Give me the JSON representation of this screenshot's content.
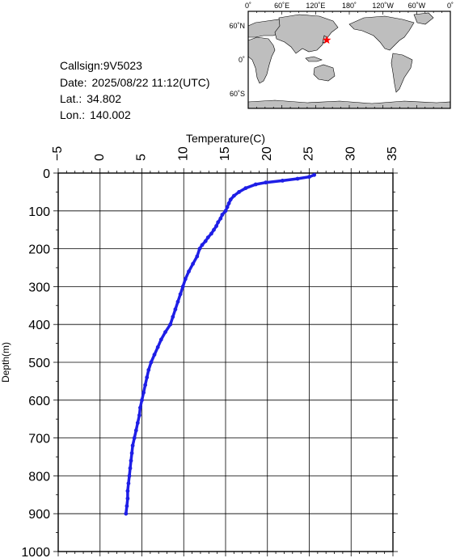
{
  "station": {
    "callsign_label": "Callsign:",
    "callsign": "9V5023",
    "date_label": "Date:",
    "date": "2025/08/22 11:12(UTC)",
    "lat_label": "Lat.:",
    "lat": "34.802",
    "lon_label": "Lon.:",
    "lon": "140.002"
  },
  "map": {
    "lon_ticks": [
      "0˚",
      "60˚E",
      "120˚E",
      "180˚",
      "120˚W",
      "60˚W",
      "0˚"
    ],
    "lat_ticks": [
      "60˚N",
      "0˚",
      "60˚S"
    ],
    "marker_lat": 34.802,
    "marker_lon": 140.002,
    "marker_color": "#ff0000",
    "land_color": "#bebebe",
    "ocean_color": "#ffffff"
  },
  "chart_data": {
    "type": "line",
    "xlabel": "Temperature(C)",
    "ylabel": "Depth(m)",
    "xlim": [
      -5,
      35
    ],
    "ylim": [
      0,
      1000
    ],
    "x_ticks": [
      -5,
      0,
      5,
      10,
      15,
      20,
      25,
      30,
      35
    ],
    "y_ticks": [
      0,
      100,
      200,
      300,
      400,
      500,
      600,
      700,
      800,
      900,
      1000
    ],
    "grid": true,
    "series_color": "#1e1ee6",
    "series": [
      {
        "depth": [
          5,
          10,
          15,
          20,
          25,
          30,
          40,
          50,
          60,
          70,
          80,
          90,
          100,
          110,
          120,
          130,
          140,
          150,
          160,
          170,
          180,
          190,
          200,
          220,
          240,
          260,
          280,
          300,
          320,
          340,
          360,
          380,
          400,
          420,
          440,
          460,
          480,
          500,
          520,
          540,
          560,
          580,
          600,
          620,
          640,
          660,
          680,
          700,
          720,
          740,
          760,
          780,
          800,
          820,
          840,
          860,
          880,
          900
        ],
        "temperature": [
          25.6,
          25.0,
          23.6,
          21.8,
          19.8,
          18.6,
          17.4,
          16.6,
          16.0,
          15.6,
          15.4,
          15.2,
          15.0,
          14.6,
          14.4,
          14.1,
          13.9,
          13.6,
          13.3,
          12.9,
          12.6,
          12.2,
          11.9,
          11.6,
          11.1,
          10.6,
          10.2,
          9.9,
          9.6,
          9.3,
          9.0,
          8.7,
          8.4,
          7.8,
          7.3,
          6.9,
          6.5,
          6.1,
          5.8,
          5.6,
          5.4,
          5.2,
          5.0,
          4.8,
          4.7,
          4.5,
          4.3,
          4.1,
          3.9,
          3.8,
          3.7,
          3.6,
          3.5,
          3.4,
          3.3,
          3.3,
          3.2,
          3.1
        ]
      }
    ]
  }
}
